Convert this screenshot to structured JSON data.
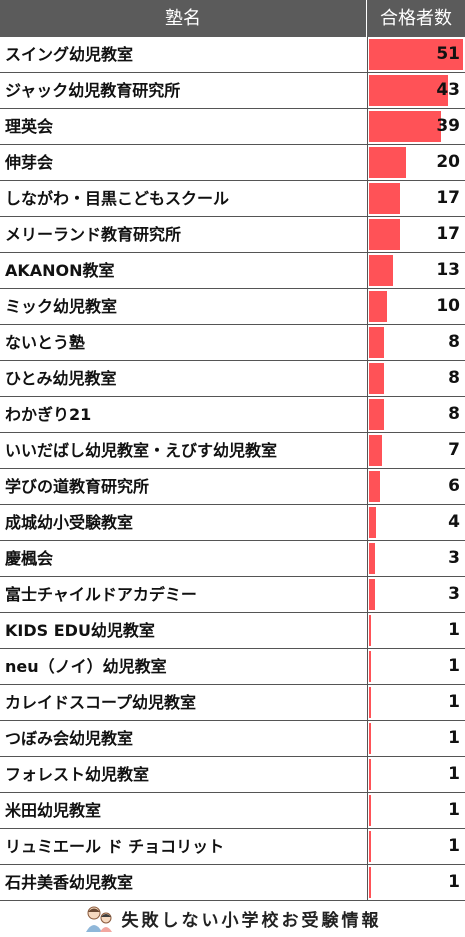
{
  "header": {
    "name_label": "塾名",
    "count_label": "合格者数"
  },
  "chart_data": {
    "type": "bar",
    "orientation": "horizontal",
    "bar_color": "#ff5257",
    "categories": [
      "スイング幼児教室",
      "ジャック幼児教育研究所",
      "理英会",
      "伸芽会",
      "しながわ・目黒こどもスクール",
      "メリーランド教育研究所",
      "AKANON教室",
      "ミック幼児教室",
      "ないとう塾",
      "ひとみ幼児教室",
      "わかぎり21",
      "いいだばし幼児教室・えびす幼児教室",
      "学びの道教育研究所",
      "成城幼小受験教室",
      "慶楓会",
      "富士チャイルドアカデミー",
      "KIDS EDU幼児教室",
      "neu（ノイ）幼児教室",
      "カレイドスコープ幼児教室",
      "つぼみ会幼児教室",
      "フォレスト幼児教室",
      "米田幼児教室",
      "リュミエール ド チョコリット",
      "石井美香幼児教室"
    ],
    "values": [
      51,
      43,
      39,
      20,
      17,
      17,
      13,
      10,
      8,
      8,
      8,
      7,
      6,
      4,
      3,
      3,
      1,
      1,
      1,
      1,
      1,
      1,
      1,
      1
    ],
    "value_max": 51
  },
  "footer": {
    "brand_text": "失敗しない小学校お受験情報",
    "icon": "parent-child-illustration-icon"
  }
}
